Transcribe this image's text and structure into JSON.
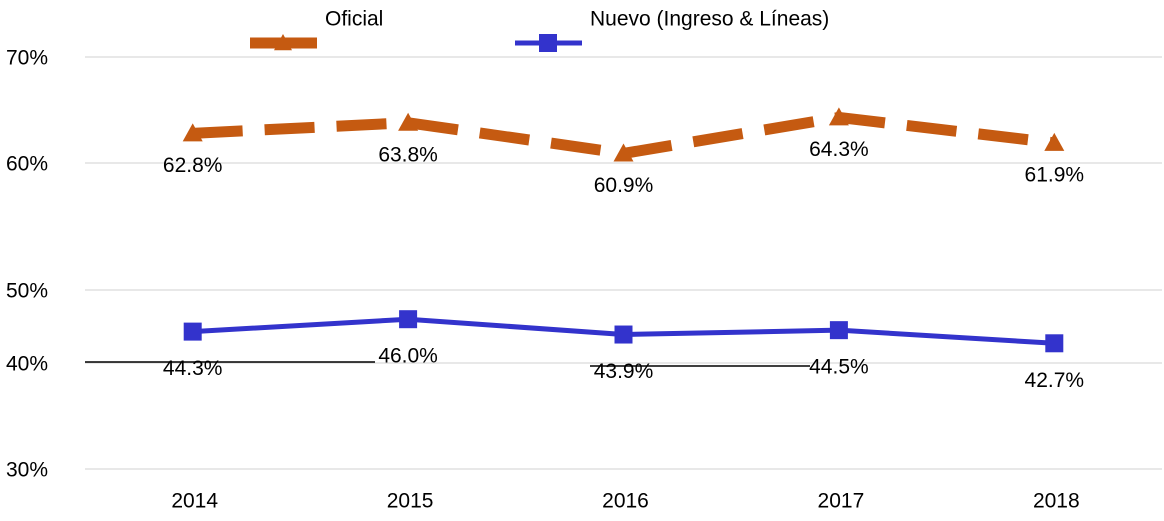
{
  "chart_data": {
    "type": "line",
    "categories": [
      "2014",
      "2015",
      "2016",
      "2017",
      "2018"
    ],
    "series": [
      {
        "name": "Oficial",
        "color": "#c55a11",
        "values": [
          62.8,
          63.8,
          60.9,
          64.3,
          61.9
        ],
        "value_labels": [
          "62.8%",
          "63.8%",
          "60.9%",
          "64.3%",
          "61.9%"
        ]
      },
      {
        "name": "Nuevo (Ingreso & Líneas)",
        "color": "#3333cc",
        "values": [
          44.3,
          46.0,
          43.9,
          44.5,
          42.7
        ],
        "value_labels": [
          "44.3%",
          "46.0%",
          "43.9%",
          "44.5%",
          "42.7%"
        ]
      }
    ],
    "ylim": [
      30,
      70
    ],
    "yticks": [
      {
        "value": 70,
        "label": "70%"
      },
      {
        "value": 60,
        "label": "60%"
      },
      {
        "value": 50,
        "label": "50%"
      },
      {
        "value": 40,
        "label": "40%"
      },
      {
        "value": 30,
        "label": "30%"
      }
    ],
    "grid": true
  }
}
